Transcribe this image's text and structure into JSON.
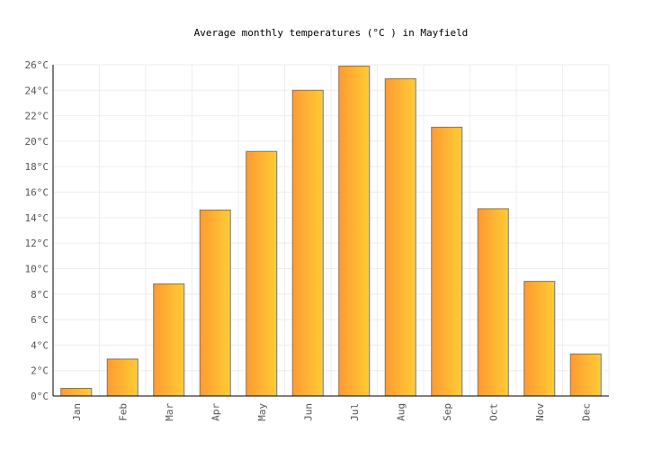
{
  "chart_data": {
    "type": "bar",
    "title": "Average monthly temperatures (°C ) in Mayfield",
    "xlabel": "",
    "ylabel": "",
    "categories": [
      "Jan",
      "Feb",
      "Mar",
      "Apr",
      "May",
      "Jun",
      "Jul",
      "Aug",
      "Sep",
      "Oct",
      "Nov",
      "Dec"
    ],
    "values": [
      0.6,
      2.9,
      8.8,
      14.6,
      19.2,
      24.0,
      25.9,
      24.9,
      21.1,
      14.7,
      9.0,
      3.3
    ],
    "ylim": [
      0,
      26
    ],
    "yticks": [
      0,
      2,
      4,
      6,
      8,
      10,
      12,
      14,
      16,
      18,
      20,
      22,
      24,
      26
    ],
    "ytick_suffix": "°C",
    "grid": true,
    "colors": {
      "bar_start": "#ff9a33",
      "bar_end": "#ffcc33",
      "bar_stroke": "#777777",
      "grid": "#eeeeee"
    }
  }
}
